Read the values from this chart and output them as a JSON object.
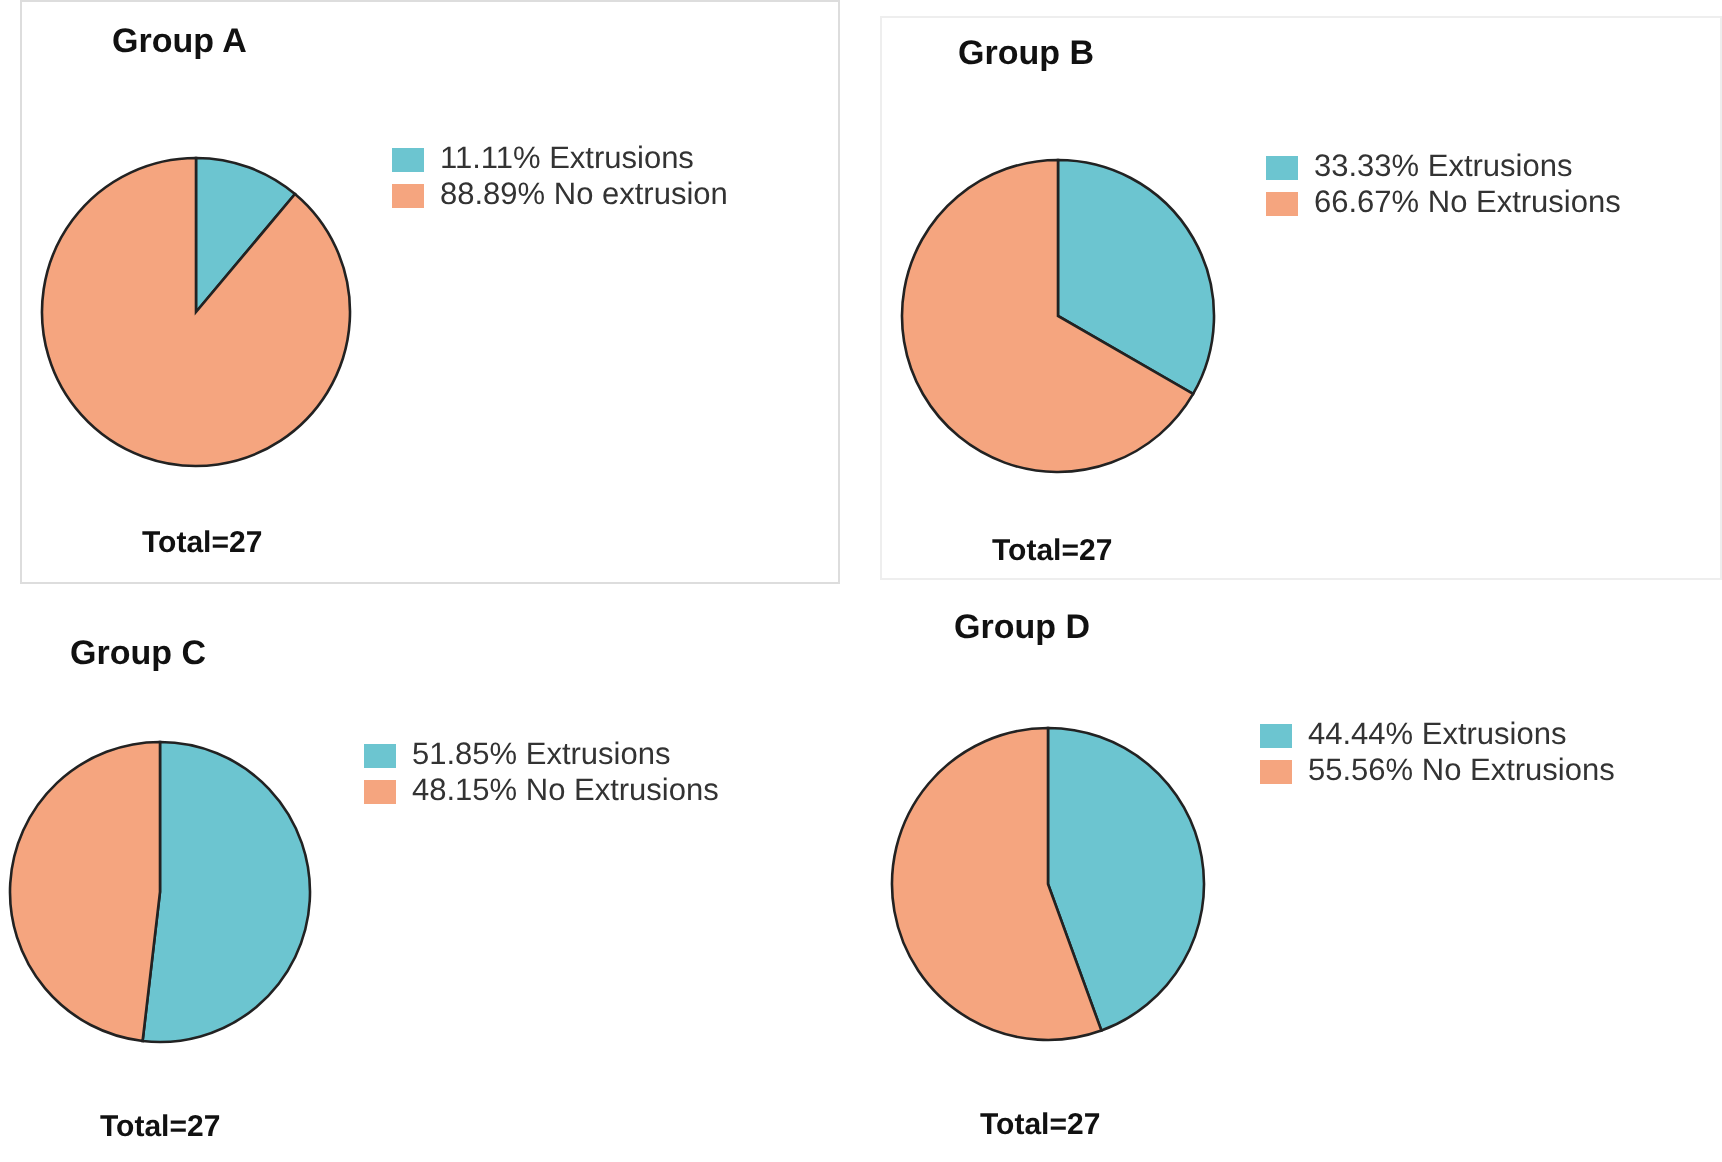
{
  "chart_data": [
    {
      "type": "pie",
      "title": "Group A",
      "categories": [
        "Extrusions",
        "No extrusion"
      ],
      "values": [
        11.11,
        88.89
      ],
      "value_labels": [
        "11.11%",
        "88.89%"
      ],
      "colors": [
        "#6cc5d0",
        "#f5a57f"
      ],
      "legend": "right",
      "annotations": [
        "Total=27"
      ]
    },
    {
      "type": "pie",
      "title": "Group B",
      "categories": [
        "Extrusions",
        "No Extrusions"
      ],
      "values": [
        33.33,
        66.67
      ],
      "value_labels": [
        "33.33%",
        "66.67%"
      ],
      "colors": [
        "#6cc5d0",
        "#f5a57f"
      ],
      "legend": "right",
      "annotations": [
        "Total=27"
      ]
    },
    {
      "type": "pie",
      "title": "Group C",
      "categories": [
        "Extrusions",
        "No Extrusions"
      ],
      "values": [
        51.85,
        48.15
      ],
      "value_labels": [
        "51.85%",
        "48.15%"
      ],
      "colors": [
        "#6cc5d0",
        "#f5a57f"
      ],
      "legend": "right",
      "annotations": [
        "Total=27"
      ]
    },
    {
      "type": "pie",
      "title": "Group D",
      "categories": [
        "Extrusions",
        "No Extrusions"
      ],
      "values": [
        44.44,
        55.56
      ],
      "value_labels": [
        "44.44%",
        "55.56%"
      ],
      "colors": [
        "#6cc5d0",
        "#f5a57f"
      ],
      "legend": "right",
      "annotations": [
        "Total=27"
      ]
    }
  ]
}
